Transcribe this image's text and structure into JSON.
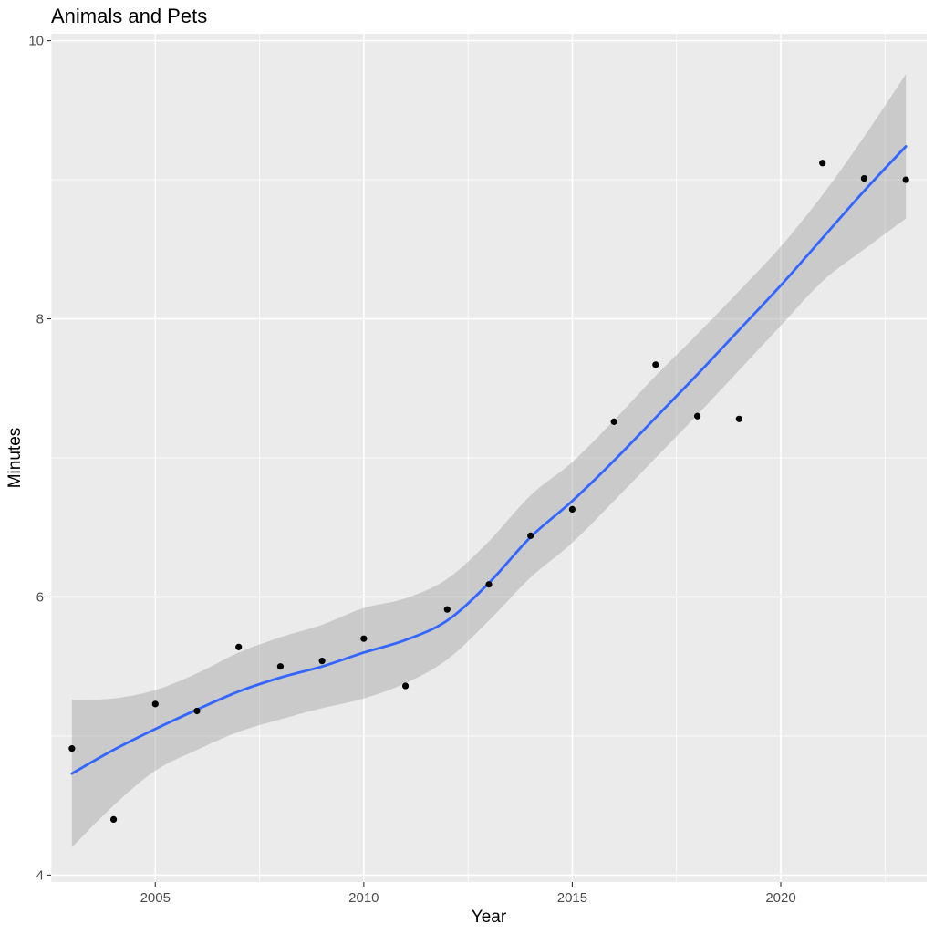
{
  "chart_data": {
    "type": "scatter",
    "title": "Animals and Pets",
    "xlabel": "Year",
    "ylabel": "Minutes",
    "xlim": [
      2002.5,
      2023.5
    ],
    "ylim": [
      3.95,
      10.05
    ],
    "x_ticks": [
      2005,
      2010,
      2015,
      2020
    ],
    "y_ticks": [
      4,
      6,
      8,
      10
    ],
    "grid": true,
    "series": [
      {
        "kind": "points",
        "color": "#000000",
        "points": [
          {
            "x": 2003,
            "y": 4.91
          },
          {
            "x": 2004,
            "y": 4.4
          },
          {
            "x": 2005,
            "y": 5.23
          },
          {
            "x": 2006,
            "y": 5.18
          },
          {
            "x": 2007,
            "y": 5.64
          },
          {
            "x": 2008,
            "y": 5.5
          },
          {
            "x": 2009,
            "y": 5.54
          },
          {
            "x": 2010,
            "y": 5.7
          },
          {
            "x": 2011,
            "y": 5.36
          },
          {
            "x": 2012,
            "y": 5.91
          },
          {
            "x": 2013,
            "y": 6.09
          },
          {
            "x": 2014,
            "y": 6.44
          },
          {
            "x": 2015,
            "y": 6.63
          },
          {
            "x": 2016,
            "y": 7.26
          },
          {
            "x": 2017,
            "y": 7.67
          },
          {
            "x": 2018,
            "y": 7.3
          },
          {
            "x": 2019,
            "y": 7.28
          },
          {
            "x": 2021,
            "y": 9.12
          },
          {
            "x": 2022,
            "y": 9.01
          },
          {
            "x": 2023,
            "y": 9.0
          }
        ]
      },
      {
        "kind": "smooth",
        "color": "#3366FF",
        "band_color": "#999999",
        "points": [
          {
            "x": 2003,
            "y": 4.73,
            "lower": 4.2,
            "upper": 5.26
          },
          {
            "x": 2004,
            "y": 4.9,
            "lower": 4.5,
            "upper": 5.27
          },
          {
            "x": 2005,
            "y": 5.05,
            "lower": 4.75,
            "upper": 5.33
          },
          {
            "x": 2006,
            "y": 5.19,
            "lower": 4.9,
            "upper": 5.45
          },
          {
            "x": 2007,
            "y": 5.32,
            "lower": 5.03,
            "upper": 5.6
          },
          {
            "x": 2008,
            "y": 5.42,
            "lower": 5.12,
            "upper": 5.71
          },
          {
            "x": 2009,
            "y": 5.5,
            "lower": 5.2,
            "upper": 5.8
          },
          {
            "x": 2010,
            "y": 5.6,
            "lower": 5.27,
            "upper": 5.92
          },
          {
            "x": 2011,
            "y": 5.69,
            "lower": 5.38,
            "upper": 5.99
          },
          {
            "x": 2012,
            "y": 5.83,
            "lower": 5.55,
            "upper": 6.13
          },
          {
            "x": 2013,
            "y": 6.1,
            "lower": 5.83,
            "upper": 6.4
          },
          {
            "x": 2014,
            "y": 6.43,
            "lower": 6.14,
            "upper": 6.73
          },
          {
            "x": 2015,
            "y": 6.69,
            "lower": 6.39,
            "upper": 6.97
          },
          {
            "x": 2016,
            "y": 6.98,
            "lower": 6.69,
            "upper": 7.27
          },
          {
            "x": 2017,
            "y": 7.29,
            "lower": 7.0,
            "upper": 7.59
          },
          {
            "x": 2018,
            "y": 7.6,
            "lower": 7.31,
            "upper": 7.89
          },
          {
            "x": 2019,
            "y": 7.92,
            "lower": 7.63,
            "upper": 8.2
          },
          {
            "x": 2020,
            "y": 8.24,
            "lower": 7.95,
            "upper": 8.52
          },
          {
            "x": 2021,
            "y": 8.58,
            "lower": 8.27,
            "upper": 8.89
          },
          {
            "x": 2022,
            "y": 8.92,
            "lower": 8.5,
            "upper": 9.31
          },
          {
            "x": 2023,
            "y": 9.24,
            "lower": 8.72,
            "upper": 9.76
          }
        ]
      }
    ]
  }
}
